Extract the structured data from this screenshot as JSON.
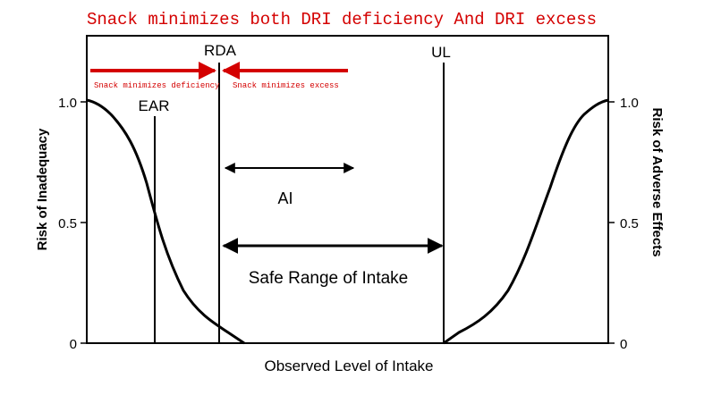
{
  "banner": {
    "title": "Snack minimizes both DRI deficiency And DRI excess",
    "deficiency_label": "Snack minimizes deficiency",
    "excess_label": "Snack minimizes excess",
    "accent_color": "#d40000"
  },
  "diagram": {
    "x_axis_label": "Observed Level of Intake",
    "y_left_label": "Risk of Inadequacy",
    "y_right_label": "Risk of Adverse Effects",
    "y_left_ticks": [
      "1.0",
      "0.5",
      "0"
    ],
    "y_right_ticks": [
      "1.0",
      "0.5",
      "0"
    ],
    "markers": {
      "ear": "EAR",
      "rda": "RDA",
      "ul": "UL"
    },
    "ranges": {
      "ai": "AI",
      "safe": "Safe Range of Intake"
    }
  }
}
